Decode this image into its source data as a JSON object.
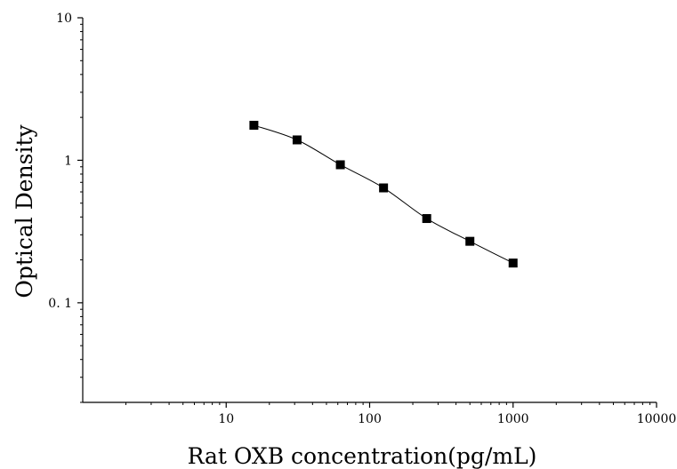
{
  "chart_data": {
    "type": "scatter",
    "title": "",
    "xlabel": "Rat OXB concentration(pg/mL)",
    "ylabel": "Optical Density",
    "x_scale": "log",
    "y_scale": "log",
    "xlim": [
      1,
      10000
    ],
    "ylim": [
      0.02,
      10
    ],
    "x_ticks": [
      {
        "value": 10,
        "label": "10"
      },
      {
        "value": 100,
        "label": "100"
      },
      {
        "value": 1000,
        "label": "1000"
      },
      {
        "value": 10000,
        "label": "10000"
      }
    ],
    "y_ticks": [
      {
        "value": 0.1,
        "label": "0. 1"
      },
      {
        "value": 1,
        "label": "1"
      },
      {
        "value": 10,
        "label": "10"
      }
    ],
    "grid": false,
    "legend": "none",
    "series": [
      {
        "x": [
          15.6,
          31.2,
          62.5,
          125,
          250,
          500,
          1000
        ],
        "y": [
          1.76,
          1.39,
          0.93,
          0.64,
          0.39,
          0.27,
          0.19
        ],
        "marker": "square",
        "fit_line": true,
        "color": "#000000"
      }
    ]
  }
}
